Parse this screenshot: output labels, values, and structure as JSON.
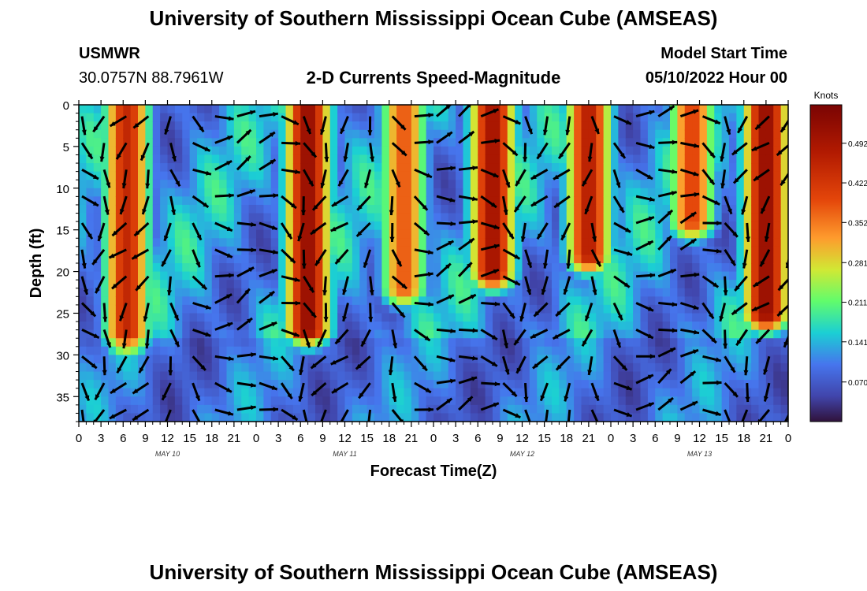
{
  "title": "University of Southern Mississippi Ocean Cube (AMSEAS)",
  "footer_title": "University of Southern Mississippi Ocean Cube (AMSEAS)",
  "station": {
    "name": "USMWR",
    "coords": "30.0757N  88.7961W"
  },
  "subtitle": "2-D Currents Speed-Magnitude",
  "model": {
    "label": "Model Start Time",
    "value": "05/10/2022 Hour 00"
  },
  "colorbar": {
    "unit": "Knots",
    "ticks": [
      "0.070",
      "0.141",
      "0.211",
      "0.281",
      "0.352",
      "0.422",
      "0.492"
    ],
    "tick_values": [
      0.07,
      0.141,
      0.211,
      0.281,
      0.352,
      0.422,
      0.492
    ],
    "min": 0.0,
    "max": 0.56
  },
  "chart_data": {
    "type": "heatmap",
    "title": "2-D Currents Speed-Magnitude",
    "xlabel": "Forecast Time(Z)",
    "ylabel": "Depth (ft)",
    "x_range_hours": [
      0,
      96
    ],
    "y_range_ft": [
      0,
      38
    ],
    "x_tick_labels": [
      "0",
      "3",
      "6",
      "9",
      "12",
      "15",
      "18",
      "21",
      "0",
      "3",
      "6",
      "9",
      "12",
      "15",
      "18",
      "21",
      "0",
      "3",
      "6",
      "9",
      "12",
      "15",
      "18",
      "21",
      "0",
      "3",
      "6",
      "9",
      "12",
      "15",
      "18",
      "21",
      "0"
    ],
    "day_labels": [
      "MAY 10",
      "MAY 11",
      "MAY 12",
      "MAY 13"
    ],
    "day_label_hours": [
      12,
      36,
      60,
      84
    ],
    "y_tick_labels": [
      "0",
      "5",
      "10",
      "15",
      "20",
      "25",
      "30",
      "35"
    ],
    "y_tick_values": [
      0,
      5,
      10,
      15,
      20,
      25,
      30,
      35
    ],
    "high_speed_bands": [
      {
        "center_hour": 6.5,
        "peak_knots": 0.45,
        "bottom_ft": 28
      },
      {
        "center_hour": 31,
        "peak_knots": 0.52,
        "bottom_ft": 27
      },
      {
        "center_hour": 44,
        "peak_knots": 0.38,
        "bottom_ft": 22
      },
      {
        "center_hour": 56,
        "peak_knots": 0.5,
        "bottom_ft": 20
      },
      {
        "center_hour": 69,
        "peak_knots": 0.47,
        "bottom_ft": 18
      },
      {
        "center_hour": 83,
        "peak_knots": 0.4,
        "bottom_ft": 14
      },
      {
        "center_hour": 93,
        "peak_knots": 0.52,
        "bottom_ft": 25
      }
    ],
    "vector_grid": {
      "columns": 33,
      "rows": 12,
      "shows": "current direction arrows"
    }
  }
}
